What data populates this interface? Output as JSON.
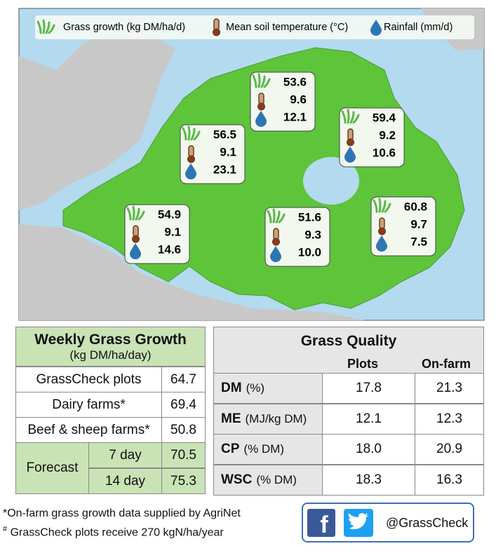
{
  "legend": [
    "Grass growth (kg DM/ha/d)",
    "Mean soil temperature (°C)",
    "Rainfall (mm/d)"
  ],
  "stations": [
    {
      "growth": "53.6",
      "temp": "9.6",
      "rain": "12.1"
    },
    {
      "growth": "59.4",
      "temp": "9.2",
      "rain": "10.6"
    },
    {
      "growth": "56.5",
      "temp": "9.1",
      "rain": "23.1"
    },
    {
      "growth": "54.9",
      "temp": "9.1",
      "rain": "14.6"
    },
    {
      "growth": "51.6",
      "temp": "9.3",
      "rain": "10.0"
    },
    {
      "growth": "60.8",
      "temp": "9.7",
      "rain": "7.5"
    }
  ],
  "growth_table": {
    "title": "Weekly Grass Growth",
    "subtitle": "(kg DM/ha/day)",
    "rows": [
      [
        "GrassCheck plots",
        "64.7"
      ],
      [
        "Dairy farms*",
        "69.4"
      ],
      [
        "Beef & sheep farms*",
        "50.8"
      ]
    ],
    "forecast": {
      "label": "Forecast",
      "rows": [
        [
          "7 day",
          "70.5"
        ],
        [
          "14 day",
          "75.3"
        ]
      ]
    }
  },
  "quality_table": {
    "title": "Grass Quality",
    "headers": [
      "Plots",
      "On-farm"
    ],
    "rows": [
      {
        "name": "DM",
        "unit": "(%)",
        "plots": "17.8",
        "onfarm": "21.3"
      },
      {
        "name": "ME",
        "unit": "(MJ/kg DM)",
        "plots": "12.1",
        "onfarm": "12.3"
      },
      {
        "name": "CP",
        "unit": "(% DM)",
        "plots": "18.0",
        "onfarm": "20.9"
      },
      {
        "name": "WSC",
        "unit": "(% DM)",
        "plots": "18.3",
        "onfarm": "16.3"
      }
    ]
  },
  "footnotes": [
    {
      "mark": "",
      "text": "*On-farm grass growth data supplied by AgriNet"
    },
    {
      "mark": "#",
      "text": " GrassCheck plots receive 270 kgN/ha/year"
    }
  ],
  "social": "@GrassCheck"
}
